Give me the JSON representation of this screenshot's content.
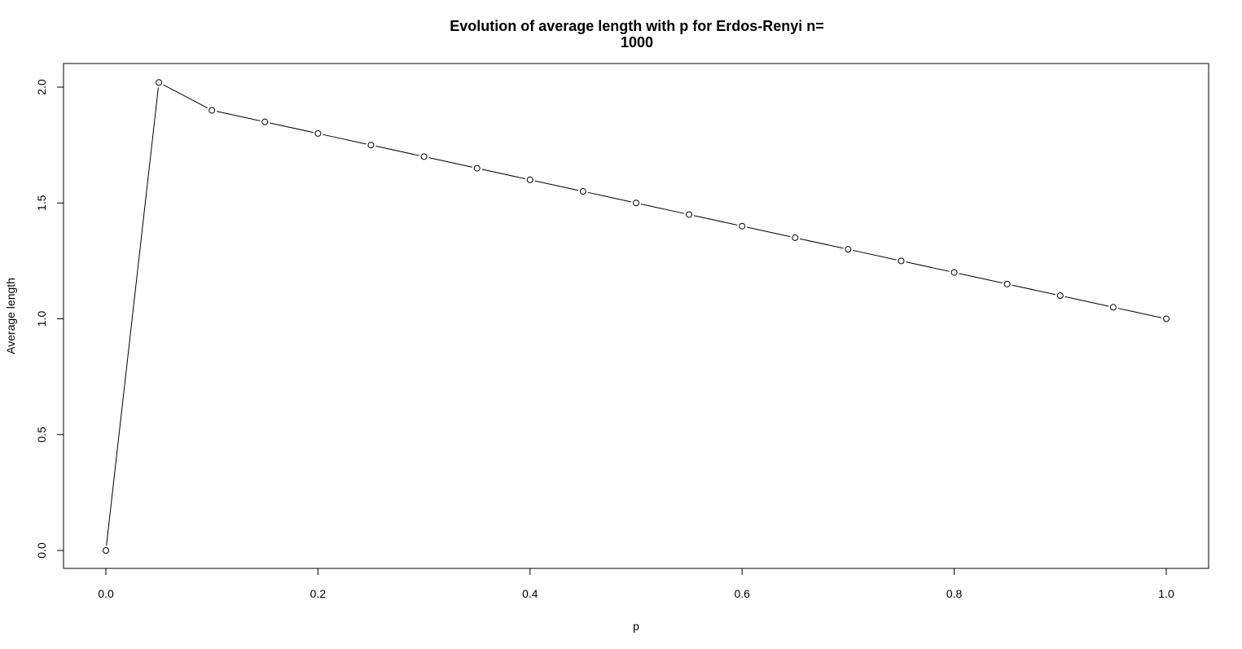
{
  "chart_data": {
    "type": "line",
    "title_line1": "Evolution of average length with p for Erdos-Renyi n=",
    "title_line2": "1000",
    "xlabel": "p",
    "ylabel": "Average length",
    "xlim": [
      0.0,
      1.0
    ],
    "ylim": [
      0.0,
      2.0
    ],
    "x_ticks": [
      0.0,
      0.2,
      0.4,
      0.6,
      0.8,
      1.0
    ],
    "x_tick_labels": [
      "0.0",
      "0.2",
      "0.4",
      "0.6",
      "0.8",
      "1.0"
    ],
    "y_ticks": [
      0.0,
      0.5,
      1.0,
      1.5,
      2.0
    ],
    "y_tick_labels": [
      "0.0",
      "0.5",
      "1.0",
      "1.5",
      "2.0"
    ],
    "grid": false,
    "marker": "open-circle",
    "line_color": "#000000",
    "series": [
      {
        "x": [
          0.0,
          0.05,
          0.1,
          0.15,
          0.2,
          0.25,
          0.3,
          0.35,
          0.4,
          0.45,
          0.5,
          0.55,
          0.6,
          0.65,
          0.7,
          0.75,
          0.8,
          0.85,
          0.9,
          0.95,
          1.0
        ],
        "values": [
          0.0,
          2.02,
          1.9,
          1.85,
          1.8,
          1.75,
          1.7,
          1.65,
          1.6,
          1.55,
          1.5,
          1.45,
          1.4,
          1.35,
          1.3,
          1.25,
          1.2,
          1.15,
          1.1,
          1.05,
          1.0
        ]
      }
    ]
  }
}
